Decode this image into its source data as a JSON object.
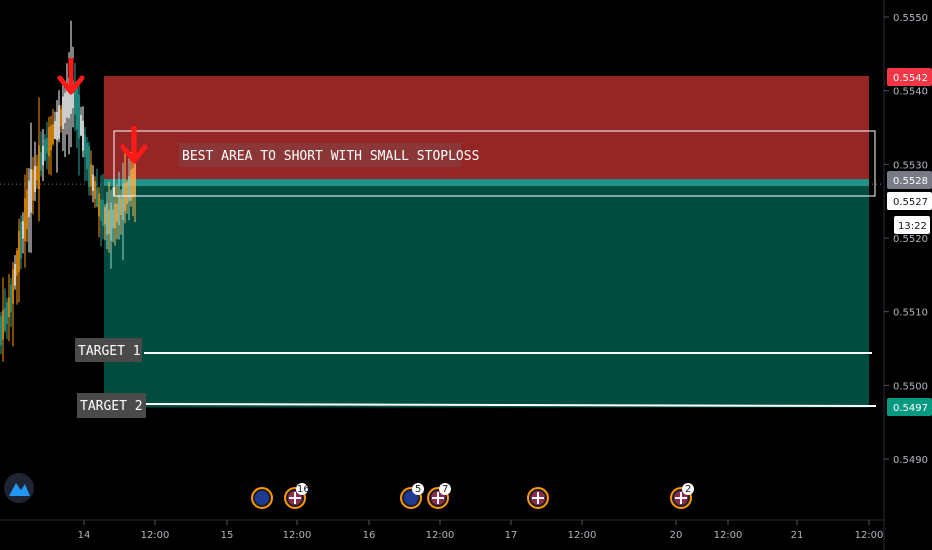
{
  "chart_data": {
    "type": "candlestick",
    "y_ticks": [
      "0.5550",
      "0.5540",
      "0.5530",
      "0.5520",
      "0.5510",
      "0.5500",
      "0.5490"
    ],
    "y_tick_values": [
      0.555,
      0.554,
      0.553,
      0.552,
      0.551,
      0.55,
      0.549
    ],
    "ylim": [
      0.54816,
      0.55545
    ],
    "x_ticks": [
      "14",
      "12:00",
      "15",
      "12:00",
      "16",
      "12:00",
      "17",
      "12:00",
      "20",
      "12:00",
      "21",
      "12:00"
    ],
    "price_tags": {
      "stop_level": "0.5542",
      "current_price": "0.5528",
      "last_price": "0.5527",
      "countdown": "13:22",
      "target_level": "0.5497"
    },
    "position": {
      "entry": 0.5528,
      "stop": 0.5542,
      "target": 0.5497
    },
    "annotations": {
      "main": "BEST AREA TO SHORT WITH SMALL STOPLOSS",
      "target1": "TARGET 1",
      "target2": "TARGET 2"
    },
    "event_badges": [
      "16",
      "5",
      "7",
      "2"
    ],
    "colors": {
      "loss_zone": "#a52a2a",
      "profit_zone": "#004d40",
      "entry_band": "#26a69a",
      "up_candle": "#26a69a",
      "down_candle": "#ff9800",
      "arrow": "#ff1a1a",
      "stop_tag": "#f23645",
      "target_tag": "#089981",
      "current_tag": "#787b86"
    }
  }
}
